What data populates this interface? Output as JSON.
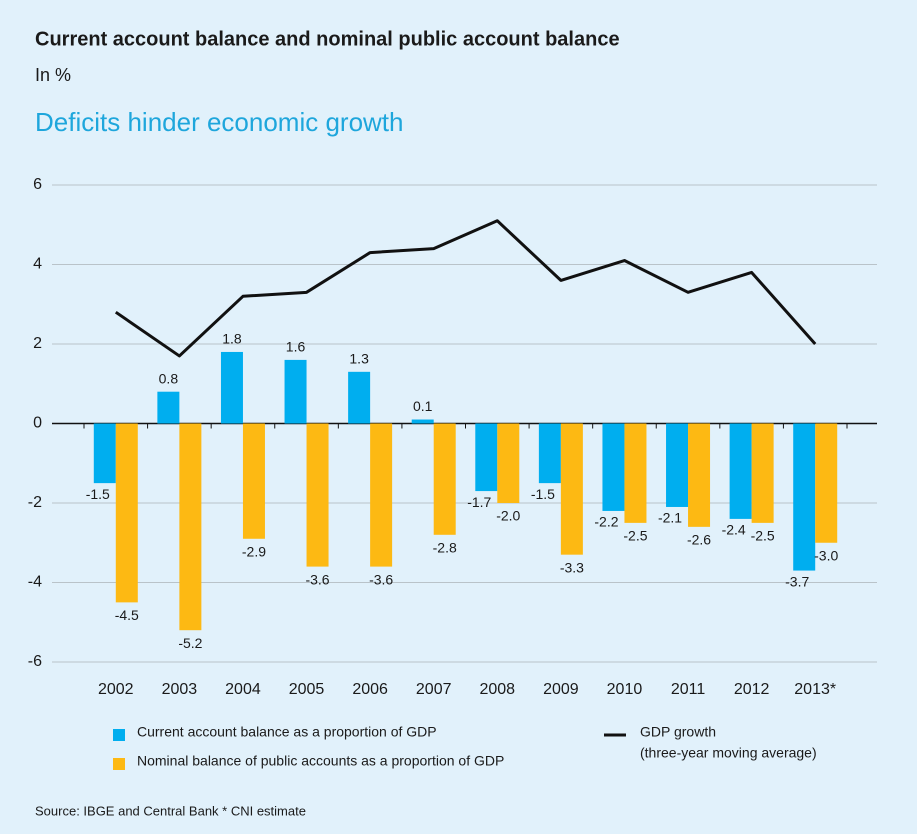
{
  "chart_data": {
    "type": "bar",
    "title": "Current account balance and nominal public account balance",
    "subtitle": "In %",
    "headline": "Deficits hinder economic growth",
    "source": "Source: IBGE and Central Bank   * CNI estimate",
    "categories": [
      "2002",
      "2003",
      "2004",
      "2005",
      "2006",
      "2007",
      "2008",
      "2009",
      "2010",
      "2011",
      "2012",
      "2013*"
    ],
    "ylim": [
      -6,
      6
    ],
    "yticks": [
      -6,
      -4,
      -2,
      0,
      2,
      4,
      6
    ],
    "grid": true,
    "series": [
      {
        "name": "Current account balance as a proportion of GDP",
        "color": "#00aeef",
        "values": [
          -1.5,
          0.8,
          1.8,
          1.6,
          1.3,
          0.1,
          -1.7,
          -1.5,
          -2.2,
          -2.1,
          -2.4,
          -3.7
        ],
        "value_labels": [
          "-1.5",
          "0.8",
          "1.8",
          "1.6",
          "1.3",
          "0.1",
          "-1.7",
          "-1.5",
          "-2.2",
          "-2.1",
          "-2.4",
          "-3.7"
        ]
      },
      {
        "name": "Nominal balance of public accounts as a proportion of GDP",
        "color": "#fdb913",
        "values": [
          -4.5,
          -5.2,
          -2.9,
          -3.6,
          -3.6,
          -2.8,
          -2.0,
          -3.3,
          -2.5,
          -2.6,
          -2.5,
          -3.0
        ],
        "value_labels": [
          "-4.5",
          "-5.2",
          "-2.9",
          "-3.6",
          "-3.6",
          "-2.8",
          "-2.0",
          "-3.3",
          "-2.5",
          "-2.6",
          "-2.5",
          "-3.0"
        ]
      },
      {
        "name": "GDP growth",
        "name_detail": "(three-year moving average)",
        "type": "line",
        "color": "#111111",
        "values": [
          2.8,
          1.7,
          3.2,
          3.3,
          4.3,
          4.4,
          5.1,
          3.6,
          4.1,
          3.3,
          3.8,
          2.0
        ]
      }
    ]
  }
}
